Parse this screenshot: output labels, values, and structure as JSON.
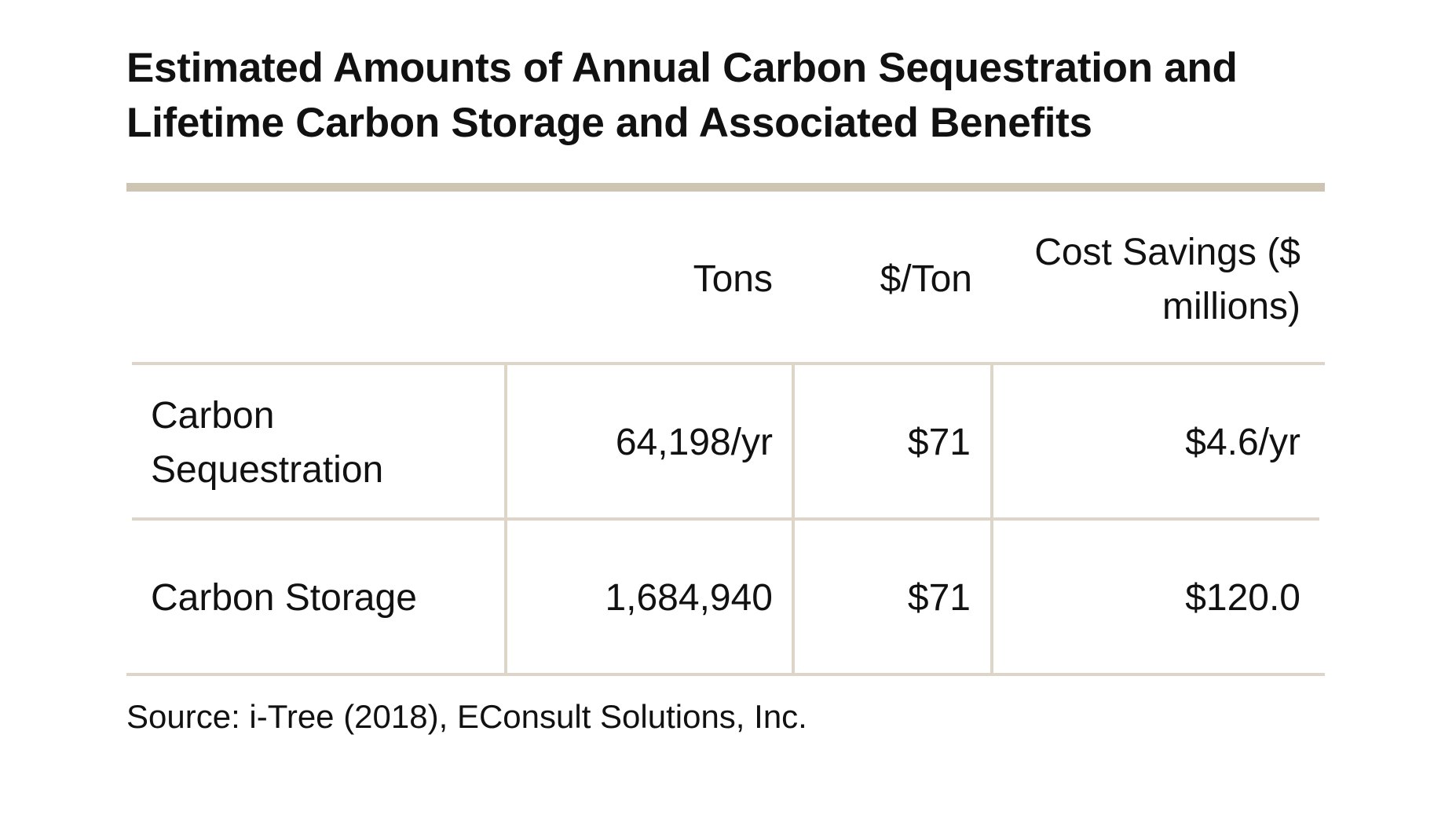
{
  "chart_data": {
    "type": "table",
    "title": "Estimated Amounts of Annual Carbon Sequestration and Lifetime Carbon Storage and Associated Benefits",
    "columns": [
      "",
      "Tons",
      "$/Ton",
      "Cost Savings ($ millions)"
    ],
    "header": {
      "tons": "Tons",
      "per_ton": "$/Ton",
      "cost_line1": "Cost Savings ($",
      "cost_line2": "millions)"
    },
    "rows": [
      {
        "label_line1": "Carbon",
        "label_line2": "Sequestration",
        "tons": "64,198/yr",
        "per_ton": "$71",
        "cost": "$4.6/yr"
      },
      {
        "label": "Carbon Storage",
        "tons": "1,684,940",
        "per_ton": "$71",
        "cost": "$120.0"
      }
    ],
    "source": "Source: i-Tree (2018), EConsult Solutions, Inc."
  },
  "colors": {
    "rule_heavy": "#cdc5b2",
    "rule_light": "#ddd6c8",
    "text": "#111111"
  }
}
